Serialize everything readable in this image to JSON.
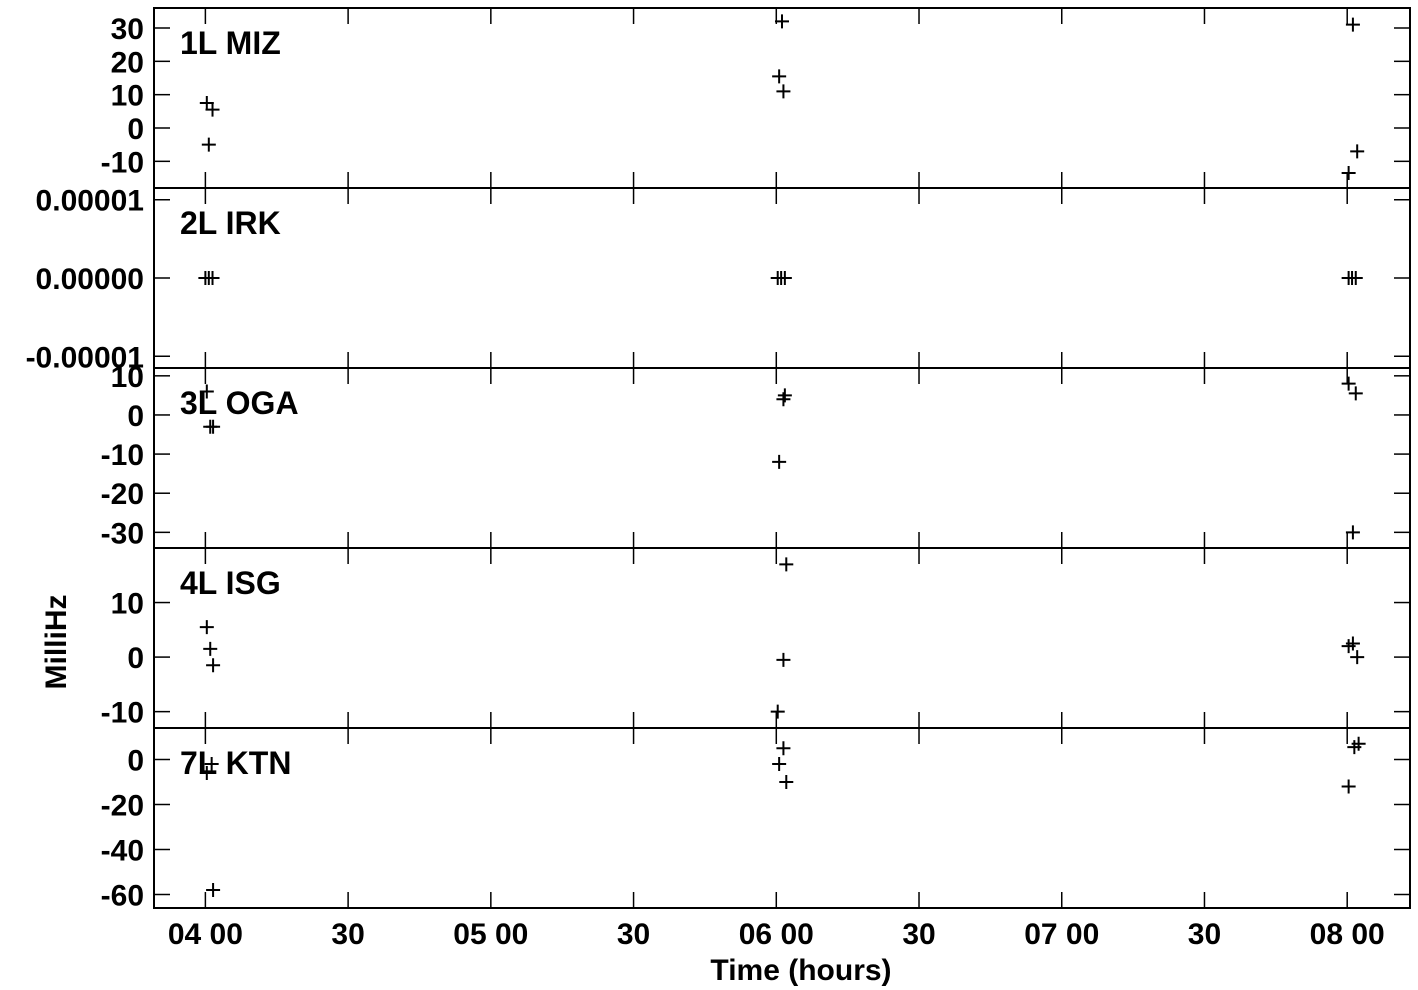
{
  "chart_data": {
    "type": "scatter",
    "xlabel": "Time (hours)",
    "ylabel": "MilliHz",
    "x_ticks": [
      {
        "value": 4.0,
        "label": "04 00"
      },
      {
        "value": 4.5,
        "label": "30"
      },
      {
        "value": 5.0,
        "label": "05 00"
      },
      {
        "value": 5.5,
        "label": "30"
      },
      {
        "value": 6.0,
        "label": "06 00"
      },
      {
        "value": 6.5,
        "label": "30"
      },
      {
        "value": 7.0,
        "label": "07 00"
      },
      {
        "value": 7.5,
        "label": "30"
      },
      {
        "value": 8.0,
        "label": "08 00"
      }
    ],
    "xlim": [
      3.82,
      8.22
    ],
    "marker": "plus",
    "panels": [
      {
        "label": "1L MIZ",
        "ylim": [
          -18,
          36
        ],
        "y_ticks": [
          {
            "value": 30,
            "label": "30"
          },
          {
            "value": 20,
            "label": "20"
          },
          {
            "value": 10,
            "label": "10"
          },
          {
            "value": 0,
            "label": "0"
          },
          {
            "value": -10,
            "label": "-10"
          }
        ],
        "points": [
          {
            "x": 4.005,
            "y": 7.5
          },
          {
            "x": 4.025,
            "y": 5.5
          },
          {
            "x": 4.012,
            "y": -5
          },
          {
            "x": 6.01,
            "y": 15.5
          },
          {
            "x": 6.025,
            "y": 11
          },
          {
            "x": 6.02,
            "y": 32
          },
          {
            "x": 8.02,
            "y": 31
          },
          {
            "x": 8.005,
            "y": -13.5
          },
          {
            "x": 8.035,
            "y": -7
          }
        ]
      },
      {
        "label": "2L IRK",
        "ylim": [
          -1.15e-05,
          1.15e-05
        ],
        "y_ticks": [
          {
            "value": 1e-05,
            "label": "0.00001"
          },
          {
            "value": 0,
            "label": "0.00000"
          },
          {
            "value": -1e-05,
            "label": "-0.00001"
          }
        ],
        "points": [
          {
            "x": 4.0,
            "y": 0
          },
          {
            "x": 4.012,
            "y": 0
          },
          {
            "x": 4.025,
            "y": 0
          },
          {
            "x": 6.005,
            "y": 0
          },
          {
            "x": 6.017,
            "y": 0
          },
          {
            "x": 6.03,
            "y": 0
          },
          {
            "x": 8.005,
            "y": 0
          },
          {
            "x": 8.017,
            "y": 0
          },
          {
            "x": 8.03,
            "y": 0
          }
        ]
      },
      {
        "label": "3L OGA",
        "ylim": [
          -34,
          12
        ],
        "y_ticks": [
          {
            "value": 10,
            "label": "10"
          },
          {
            "value": 0,
            "label": "0"
          },
          {
            "value": -10,
            "label": "-10"
          },
          {
            "value": -20,
            "label": "-20"
          },
          {
            "value": -30,
            "label": "-30"
          }
        ],
        "points": [
          {
            "x": 4.005,
            "y": 6
          },
          {
            "x": 4.017,
            "y": -3
          },
          {
            "x": 4.027,
            "y": -3
          },
          {
            "x": 6.01,
            "y": -12
          },
          {
            "x": 6.025,
            "y": 4
          },
          {
            "x": 6.03,
            "y": 5
          },
          {
            "x": 8.005,
            "y": 8
          },
          {
            "x": 8.03,
            "y": 5.5
          },
          {
            "x": 8.02,
            "y": -30
          }
        ]
      },
      {
        "label": "4L ISG",
        "ylim": [
          -13,
          20
        ],
        "y_ticks": [
          {
            "value": 10,
            "label": "10"
          },
          {
            "value": 0,
            "label": "0"
          },
          {
            "value": -10,
            "label": "-10"
          }
        ],
        "points": [
          {
            "x": 4.005,
            "y": 5.5
          },
          {
            "x": 4.017,
            "y": 1.5
          },
          {
            "x": 4.027,
            "y": -1.5
          },
          {
            "x": 6.025,
            "y": -0.5
          },
          {
            "x": 6.005,
            "y": -10
          },
          {
            "x": 6.035,
            "y": 17
          },
          {
            "x": 8.005,
            "y": 2
          },
          {
            "x": 8.02,
            "y": 2.5
          },
          {
            "x": 8.035,
            "y": 0
          }
        ]
      },
      {
        "label": "7L KTN",
        "ylim": [
          -66,
          14
        ],
        "y_ticks": [
          {
            "value": 0,
            "label": "0"
          },
          {
            "value": -20,
            "label": "-20"
          },
          {
            "value": -40,
            "label": "-40"
          },
          {
            "value": -60,
            "label": "-60"
          }
        ],
        "points": [
          {
            "x": 4.005,
            "y": -6
          },
          {
            "x": 4.022,
            "y": -2
          },
          {
            "x": 4.027,
            "y": -58
          },
          {
            "x": 6.01,
            "y": -2
          },
          {
            "x": 6.025,
            "y": 5
          },
          {
            "x": 6.035,
            "y": -10
          },
          {
            "x": 8.005,
            "y": -12
          },
          {
            "x": 8.025,
            "y": 5.5
          },
          {
            "x": 8.04,
            "y": 7
          }
        ]
      }
    ]
  }
}
